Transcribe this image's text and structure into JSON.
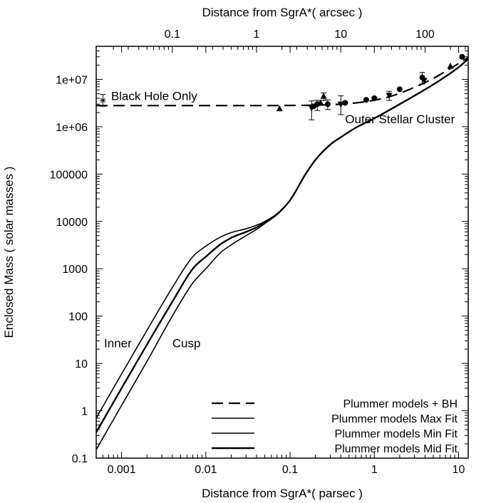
{
  "chart_data": {
    "type": "line",
    "title": "",
    "xscale": "log",
    "yscale": "log",
    "xlabel": "Distance from SgrA*( parsec )",
    "x2label": "Distance from SgrA*( arcsec )",
    "ylabel": "Enclosed Mass ( solar masses )",
    "xlim": [
      0.0005,
      13
    ],
    "ylim": [
      0.1,
      50000000
    ],
    "x2lim": [
      0.0125,
      325
    ],
    "xticks": [
      {
        "value": 0.001,
        "label": "0.001"
      },
      {
        "value": 0.01,
        "label": "0.01"
      },
      {
        "value": 0.1,
        "label": "0.1"
      },
      {
        "value": 1,
        "label": "1"
      },
      {
        "value": 10,
        "label": "10"
      }
    ],
    "x2ticks": [
      {
        "value": 0.1,
        "label": "0.1"
      },
      {
        "value": 1,
        "label": "1"
      },
      {
        "value": 10,
        "label": "10"
      },
      {
        "value": 100,
        "label": "100"
      }
    ],
    "yticks": [
      {
        "value": 0.1,
        "label": "0.1"
      },
      {
        "value": 1,
        "label": "1"
      },
      {
        "value": 10,
        "label": "10"
      },
      {
        "value": 100,
        "label": "100"
      },
      {
        "value": 1000,
        "label": "1000"
      },
      {
        "value": 10000,
        "label": "10000"
      },
      {
        "value": 100000,
        "label": "100000"
      },
      {
        "value": 1000000,
        "label": "1e+06"
      },
      {
        "value": 10000000,
        "label": "1e+07"
      }
    ],
    "series": [
      {
        "name": "Plummer models + BH",
        "style": "dashed",
        "x": [
          0.0005,
          0.01,
          0.05,
          0.1,
          0.2,
          0.4,
          0.8,
          1.5,
          3,
          5,
          8,
          13
        ],
        "y": [
          2800000,
          2800000,
          2800000,
          2820000,
          2850000,
          3000000,
          3400000,
          4300000,
          6800000,
          10500000,
          17000000,
          29000000
        ]
      },
      {
        "name": "Plummer models Max Fit",
        "style": "solid",
        "x": [
          0.0005,
          0.001,
          0.002,
          0.004,
          0.007,
          0.01,
          0.015,
          0.02,
          0.03,
          0.04,
          0.05,
          0.07,
          0.1,
          0.15,
          0.2,
          0.3,
          0.4,
          0.6,
          1,
          2,
          5,
          10,
          13
        ],
        "y": [
          0.7,
          6,
          50,
          400,
          1800,
          3000,
          4700,
          5800,
          7000,
          8300,
          10000,
          14500,
          28000,
          95000,
          200000,
          420000,
          600000,
          950000,
          1500000,
          3000000,
          7800000,
          18000000,
          27000000
        ]
      },
      {
        "name": "Plummer models Min Fit",
        "style": "solid",
        "x": [
          0.0005,
          0.001,
          0.002,
          0.004,
          0.007,
          0.01,
          0.015,
          0.02,
          0.03,
          0.04,
          0.05,
          0.07,
          0.1,
          0.15,
          0.2,
          0.3,
          0.4,
          0.6,
          1,
          2,
          5,
          10,
          13
        ],
        "y": [
          0.15,
          1.3,
          11,
          100,
          500,
          1000,
          2200,
          3200,
          5000,
          6800,
          9000,
          14000,
          28000,
          95000,
          200000,
          420000,
          600000,
          950000,
          1500000,
          3000000,
          7800000,
          18000000,
          27000000
        ]
      },
      {
        "name": "Plummer models Mid Fit",
        "style": "solid-thick",
        "x": [
          0.0005,
          0.001,
          0.002,
          0.004,
          0.007,
          0.01,
          0.015,
          0.02,
          0.03,
          0.04,
          0.05,
          0.07,
          0.1,
          0.15,
          0.2,
          0.3,
          0.4,
          0.6,
          1,
          2,
          5,
          10,
          13
        ],
        "y": [
          0.35,
          3,
          25,
          200,
          1000,
          1800,
          3300,
          4500,
          6000,
          7500,
          9500,
          14200,
          28000,
          95000,
          200000,
          420000,
          600000,
          950000,
          1500000,
          3000000,
          7800000,
          18000000,
          27000000
        ]
      }
    ],
    "observations": [
      {
        "x": 0.0006,
        "y": 3600000,
        "yerr_lo": 2700000,
        "yerr_hi": 4800000,
        "marker": "star"
      },
      {
        "x": 0.075,
        "y": 2400000,
        "marker": "triangle"
      },
      {
        "x": 0.18,
        "y": 2500000,
        "yerr_lo": 1400000,
        "yerr_hi": 3500000,
        "marker": "triangle-down"
      },
      {
        "x": 0.19,
        "y": 2700000,
        "marker": "circle"
      },
      {
        "x": 0.21,
        "y": 3000000,
        "yerr_lo": 2200000,
        "yerr_hi": 3600000,
        "marker": "circle"
      },
      {
        "x": 0.23,
        "y": 3200000,
        "marker": "triangle"
      },
      {
        "x": 0.25,
        "y": 4400000,
        "yerr_lo": 3600000,
        "yerr_hi": 5200000,
        "marker": "triangle"
      },
      {
        "x": 0.28,
        "y": 3000000,
        "yerr_lo": 2300000,
        "yerr_hi": 3700000,
        "marker": "circle"
      },
      {
        "x": 0.4,
        "y": 3000000,
        "yerr_lo": 1800000,
        "yerr_hi": 4500000,
        "marker": "triangle-down"
      },
      {
        "x": 0.45,
        "y": 3200000,
        "marker": "circle"
      },
      {
        "x": 0.8,
        "y": 3700000,
        "marker": "circle"
      },
      {
        "x": 1.0,
        "y": 4000000,
        "marker": "circle"
      },
      {
        "x": 1.5,
        "y": 4600000,
        "yerr_lo": 3600000,
        "yerr_hi": 5600000,
        "marker": "triangle-down"
      },
      {
        "x": 2.0,
        "y": 6200000,
        "marker": "circle"
      },
      {
        "x": 3.7,
        "y": 11000000,
        "yerr_lo": 8000000,
        "yerr_hi": 14000000,
        "marker": "circle"
      },
      {
        "x": 3.9,
        "y": 9500000,
        "marker": "triangle-down"
      },
      {
        "x": 8.0,
        "y": 19000000,
        "marker": "triangle"
      },
      {
        "x": 11,
        "y": 30000000,
        "marker": "circle"
      }
    ],
    "annotations": [
      {
        "text": "Black Hole Only",
        "x": 0.00075,
        "y": 4500000
      },
      {
        "text": "Outer Stellar Cluster",
        "x": 0.45,
        "y": 1450000
      },
      {
        "text": "Inner",
        "x": 0.00062,
        "y": 27
      },
      {
        "text": "Cusp",
        "x": 0.004,
        "y": 27
      }
    ],
    "legend": {
      "position": "bottom-right",
      "entries": [
        "Plummer models + BH",
        "Plummer models Max Fit",
        "Plummer models Min Fit",
        "Plummer models Mid Fit"
      ]
    }
  }
}
